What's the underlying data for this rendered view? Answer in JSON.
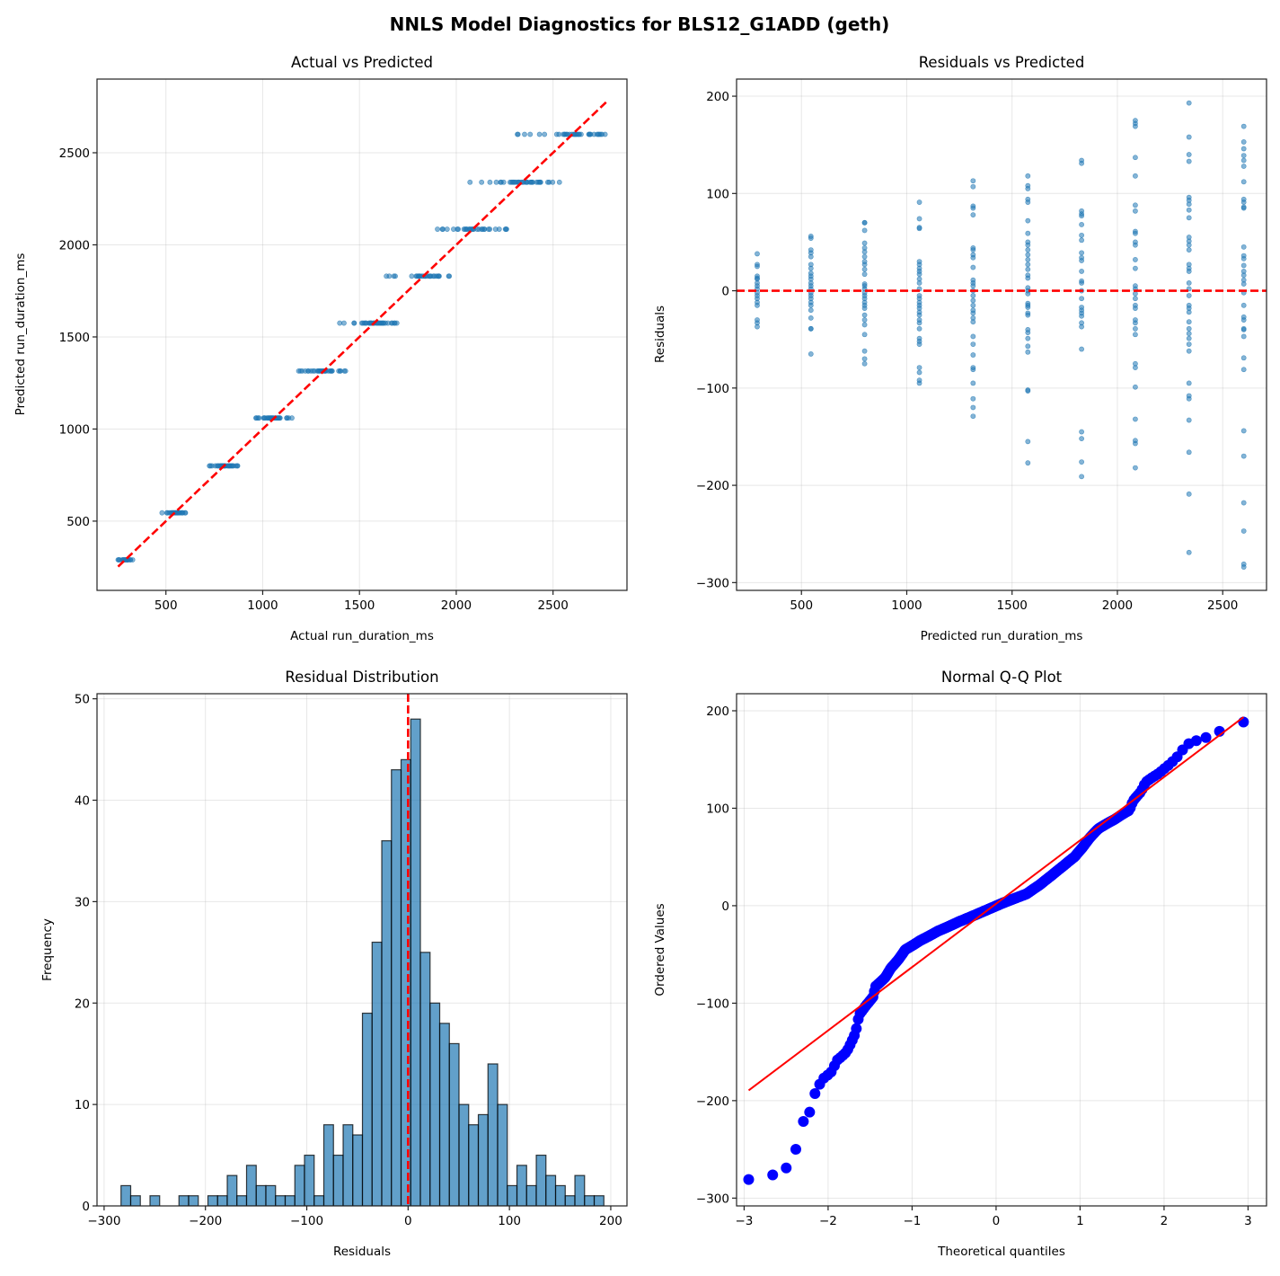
{
  "figure": {
    "title": "NNLS Model Diagnostics for BLS12_G1ADD (geth)"
  },
  "colors": {
    "points": "#1f77b4",
    "reference_line": "#ff0000",
    "qq_points": "#0000ff",
    "hist_fill": "#1f77b4",
    "hist_edge": "#000000"
  },
  "chart_data": [
    {
      "id": "actual_vs_predicted",
      "type": "scatter",
      "title": "Actual vs Predicted",
      "xlabel": "Actual run_duration_ms",
      "ylabel": "Predicted run_duration_ms",
      "xlim": [
        144,
        2882
      ],
      "ylim": [
        124,
        2900
      ],
      "xticks": [
        500,
        1000,
        1500,
        2000,
        2500
      ],
      "xtick_labels": [
        "500",
        "1000",
        "1500",
        "2000",
        "2500"
      ],
      "yticks": [
        500,
        1000,
        1500,
        2000,
        2500
      ],
      "ytick_labels": [
        "500",
        "1000",
        "1500",
        "2000",
        "2500"
      ],
      "grid": true,
      "reference_line": {
        "style": "dashed",
        "from": [
          253,
          253
        ],
        "to": [
          2774,
          2774
        ]
      },
      "points_source": "residuals_vs_predicted (x = predicted + residual, y = predicted)"
    },
    {
      "id": "residuals_vs_predicted",
      "type": "scatter",
      "title": "Residuals vs Predicted",
      "xlabel": "Predicted run_duration_ms",
      "ylabel": "Residuals",
      "xlim": [
        192,
        2708
      ],
      "ylim": [
        -308,
        217.6
      ],
      "xticks": [
        500,
        1000,
        1500,
        2000,
        2500
      ],
      "xtick_labels": [
        "500",
        "1000",
        "1500",
        "2000",
        "2500"
      ],
      "yticks": [
        -300,
        -200,
        -100,
        0,
        100,
        200
      ],
      "ytick_labels": [
        "−300",
        "−200",
        "−100",
        "0",
        "100",
        "200"
      ],
      "grid": true,
      "reference_line": {
        "style": "dashed",
        "y": 0
      },
      "groups": [
        {
          "predicted": 290,
          "residuals": [
            38,
            27,
            25,
            15,
            13,
            12,
            8,
            5,
            2,
            -2,
            -5,
            -8,
            -12,
            -15,
            -30,
            -33,
            -37
          ]
        },
        {
          "predicted": 545,
          "residuals": [
            56,
            54,
            42,
            39,
            35,
            27,
            23,
            18,
            15,
            12,
            8,
            5,
            2,
            -2,
            -5,
            -8,
            -12,
            -15,
            -20,
            -28,
            -39,
            -39,
            -65
          ]
        },
        {
          "predicted": 800,
          "residuals": [
            70,
            70,
            62,
            49,
            44,
            40,
            35,
            30,
            27,
            22,
            17,
            7,
            5,
            2,
            -2,
            -5,
            -8,
            -12,
            -15,
            -18,
            -25,
            -30,
            -35,
            -45,
            -62,
            -70,
            -75
          ]
        },
        {
          "predicted": 1060,
          "residuals": [
            91,
            74,
            65,
            64,
            30,
            27,
            23,
            20,
            17,
            12,
            8,
            2,
            -5,
            -8,
            -12,
            -15,
            -18,
            -22,
            -25,
            -30,
            -33,
            -39,
            -49,
            -52,
            -55,
            -79,
            -84,
            -92,
            -95
          ]
        },
        {
          "predicted": 1315,
          "residuals": [
            113,
            107,
            87,
            85,
            78,
            44,
            42,
            37,
            34,
            24,
            11,
            8,
            5,
            0,
            -5,
            -10,
            -15,
            -20,
            -23,
            -28,
            -32,
            -47,
            -55,
            -66,
            -79,
            -81,
            -95,
            -111,
            -120,
            -129
          ]
        },
        {
          "predicted": 1575,
          "residuals": [
            118,
            108,
            105,
            94,
            91,
            72,
            59,
            50,
            47,
            42,
            37,
            32,
            27,
            22,
            16,
            13,
            3,
            0,
            -3,
            -13,
            -15,
            -17,
            -23,
            -25,
            -40,
            -43,
            -49,
            -57,
            -63,
            -102,
            -103,
            -155,
            -177
          ]
        },
        {
          "predicted": 1830,
          "residuals": [
            134,
            131,
            82,
            79,
            77,
            68,
            57,
            52,
            39,
            34,
            31,
            20,
            10,
            8,
            0,
            -8,
            -17,
            -20,
            -23,
            -26,
            -33,
            -37,
            -60,
            -145,
            -152,
            -176,
            -191
          ]
        },
        {
          "predicted": 2085,
          "residuals": [
            175,
            172,
            169,
            137,
            118,
            88,
            82,
            61,
            59,
            50,
            47,
            32,
            23,
            5,
            2,
            -3,
            -8,
            -15,
            -18,
            -30,
            -33,
            -39,
            -45,
            -75,
            -79,
            -99,
            -132,
            -154,
            -157,
            -182
          ]
        },
        {
          "predicted": 2340,
          "residuals": [
            193,
            158,
            140,
            133,
            96,
            93,
            89,
            83,
            75,
            55,
            51,
            47,
            42,
            27,
            23,
            20,
            8,
            2,
            -5,
            -15,
            -18,
            -22,
            -32,
            -39,
            -44,
            -49,
            -55,
            -62,
            -95,
            -108,
            -111,
            -133,
            -166,
            -209,
            -269
          ]
        },
        {
          "predicted": 2600,
          "residuals": [
            169,
            153,
            146,
            139,
            134,
            128,
            112,
            94,
            91,
            86,
            85,
            45,
            36,
            33,
            26,
            20,
            16,
            11,
            7,
            -2,
            -15,
            -27,
            -30,
            -39,
            -40,
            -47,
            -69,
            -81,
            -144,
            -170,
            -218,
            -247,
            -281,
            -284
          ]
        }
      ]
    },
    {
      "id": "residual_distribution",
      "type": "bar",
      "title": "Residual Distribution",
      "xlabel": "Residuals",
      "ylabel": "Frequency",
      "xlim": [
        -307,
        216
      ],
      "ylim": [
        0,
        50.5
      ],
      "xticks": [
        -300,
        -200,
        -100,
        0,
        100,
        200
      ],
      "xtick_labels": [
        "−300",
        "−200",
        "−100",
        "0",
        "100",
        "200"
      ],
      "yticks": [
        0,
        10,
        20,
        30,
        40,
        50
      ],
      "ytick_labels": [
        "0",
        "10",
        "20",
        "30",
        "40",
        "50"
      ],
      "grid": true,
      "reference_line": {
        "style": "dashed",
        "x": 0
      },
      "bin_start": -283.3,
      "bin_width": 9.53,
      "counts": [
        2,
        1,
        0,
        1,
        0,
        0,
        1,
        1,
        0,
        1,
        1,
        3,
        1,
        4,
        2,
        2,
        1,
        1,
        4,
        5,
        1,
        8,
        5,
        8,
        7,
        19,
        26,
        36,
        43,
        44,
        48,
        25,
        20,
        18,
        16,
        10,
        8,
        9,
        14,
        10,
        2,
        4,
        2,
        5,
        3,
        2,
        1,
        3,
        1,
        1
      ]
    },
    {
      "id": "normal_qq",
      "type": "scatter",
      "title": "Normal Q-Q Plot",
      "xlabel": "Theoretical quantiles",
      "ylabel": "Ordered Values",
      "xlim": [
        -3.09,
        3.22
      ],
      "ylim": [
        -308,
        217.5
      ],
      "xticks": [
        -3,
        -2,
        -1,
        0,
        1,
        2,
        3
      ],
      "xtick_labels": [
        "−3",
        "−2",
        "−1",
        "0",
        "1",
        "2",
        "3"
      ],
      "yticks": [
        -300,
        -200,
        -100,
        0,
        100,
        200
      ],
      "ytick_labels": [
        "−300",
        "−200",
        "−100",
        "0",
        "100",
        "200"
      ],
      "grid": true,
      "fit_line": {
        "slope": 65,
        "intercept": 2
      },
      "points_source": "residual_distribution (ordered residuals vs normal quantiles)"
    }
  ]
}
